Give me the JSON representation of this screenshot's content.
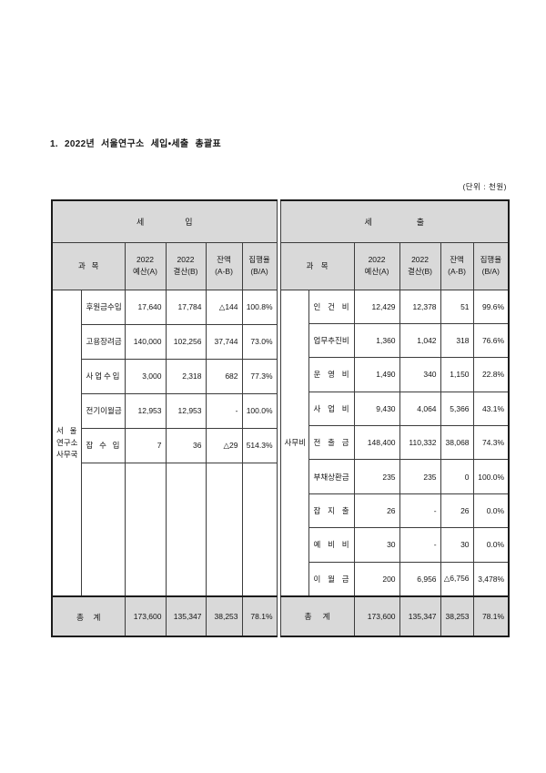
{
  "page": {
    "title": "1. 2022년 서울연구소 세입•세출 총괄표",
    "unit_note": "(단위 : 천원)"
  },
  "columns": {
    "subject": "과목",
    "budget_l1": "2022",
    "budget_l2": "예산(A)",
    "settlement_l1": "2022",
    "settlement_l2": "결산(B)",
    "balance_l1": "잔액",
    "balance_l2": "(A-B)",
    "rate_l1": "집행율",
    "rate_l2": "(B/A)"
  },
  "revenue": {
    "section_title": "세입",
    "side_label": [
      "서울",
      "연구소",
      "사무국"
    ],
    "rows": [
      {
        "name": "후원금수입",
        "budget": "17,640",
        "settlement": "17,784",
        "balance": "△144",
        "rate": "100.8%"
      },
      {
        "name": "고용장려금",
        "budget": "140,000",
        "settlement": "102,256",
        "balance": "37,744",
        "rate": "73.0%"
      },
      {
        "name": "사업수입",
        "budget": "3,000",
        "settlement": "2,318",
        "balance": "682",
        "rate": "77.3%"
      },
      {
        "name": "전기이월금",
        "budget": "12,953",
        "settlement": "12,953",
        "balance": "-",
        "rate": "100.0%"
      },
      {
        "name": "잡수입",
        "budget": "7",
        "settlement": "36",
        "balance": "△29",
        "rate": "514.3%"
      }
    ],
    "total_label": "총계",
    "total": {
      "budget": "173,600",
      "settlement": "135,347",
      "balance": "38,253",
      "rate": "78.1%"
    }
  },
  "expenditure": {
    "section_title": "세출",
    "side_label": "사무비",
    "rows": [
      {
        "name": "인건비",
        "budget": "12,429",
        "settlement": "12,378",
        "balance": "51",
        "rate": "99.6%"
      },
      {
        "name": "업무추진비",
        "budget": "1,360",
        "settlement": "1,042",
        "balance": "318",
        "rate": "76.6%"
      },
      {
        "name": "운영비",
        "budget": "1,490",
        "settlement": "340",
        "balance": "1,150",
        "rate": "22.8%"
      },
      {
        "name": "사업비",
        "budget": "9,430",
        "settlement": "4,064",
        "balance": "5,366",
        "rate": "43.1%"
      },
      {
        "name": "전출금",
        "budget": "148,400",
        "settlement": "110,332",
        "balance": "38,068",
        "rate": "74.3%"
      },
      {
        "name": "부채상환금",
        "budget": "235",
        "settlement": "235",
        "balance": "0",
        "rate": "100.0%"
      },
      {
        "name": "잡지출",
        "budget": "26",
        "settlement": "-",
        "balance": "26",
        "rate": "0.0%"
      },
      {
        "name": "예비비",
        "budget": "30",
        "settlement": "-",
        "balance": "30",
        "rate": "0.0%"
      },
      {
        "name": "이월금",
        "budget": "200",
        "settlement": "6,956",
        "balance": "△6,756",
        "rate": "3,478%"
      }
    ],
    "total_label": "총계",
    "total": {
      "budget": "173,600",
      "settlement": "135,347",
      "balance": "38,253",
      "rate": "78.1%"
    }
  },
  "colors": {
    "header_bg": "#d9d9d9",
    "border_outer": "#1c1c1c",
    "border_inner": "#3c3c3c"
  }
}
